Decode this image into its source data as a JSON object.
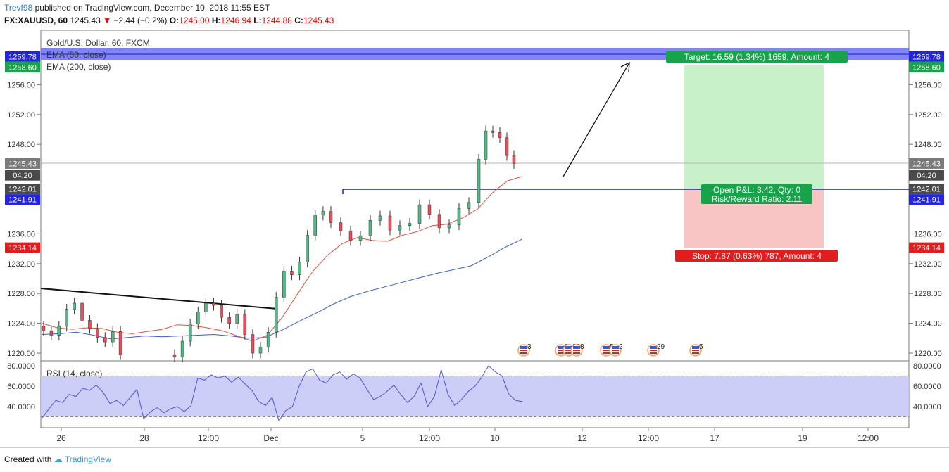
{
  "header": {
    "user": "Trevf98",
    "published": "published on TradingView.com, December 10, 2018 11:55 EST",
    "symbol": "FX:XAUUSD, 60",
    "last": "1245.43",
    "change_arrow": "▼",
    "change": "−2.44 (−0.2%)",
    "o_label": "O:",
    "o": "1245.00",
    "h_label": "H:",
    "h": "1246.94",
    "l_label": "L:",
    "l": "1244.88",
    "c_label": "C:",
    "c": "1245.43"
  },
  "legend": {
    "title": "Gold/U.S. Dollar, 60, FXCM",
    "ema50": "EMA (50, close)",
    "ema200": "EMA (200, close)",
    "rsi": "RSI (14, close)"
  },
  "colors": {
    "up": "#53b987",
    "down": "#eb4d5c",
    "ema50": "#e74c3c",
    "ema200": "#3a5bd9",
    "rsi": "#4a55d6",
    "rsi_band": "#c7c9f7",
    "target": "#16a34a",
    "stop": "#e11d1d",
    "level": "#1c1ccc",
    "profit_zone": "#c9f1c9",
    "loss_zone": "#f9c4c4"
  },
  "price_badges": {
    "left": [
      {
        "text": "1259.78",
        "kind": "blue",
        "price": 1259.78
      },
      {
        "text": "1258.60",
        "kind": "green",
        "price": 1258.6
      },
      {
        "text": "1245.43",
        "kind": "gray",
        "price": 1245.43
      },
      {
        "text": "04:20",
        "kind": "dark",
        "price": 1243.85
      },
      {
        "text": "1242.01",
        "kind": "dark",
        "price": 1242.01
      },
      {
        "text": "1241.91",
        "kind": "blue",
        "price": 1241.91
      },
      {
        "text": "1234.14",
        "kind": "red",
        "price": 1234.14
      }
    ],
    "right": [
      {
        "text": "1259.78",
        "kind": "blue",
        "price": 1259.78
      },
      {
        "text": "1258.60",
        "kind": "green",
        "price": 1258.6
      },
      {
        "text": "1245.43",
        "kind": "gray",
        "price": 1245.43
      },
      {
        "text": "04:20",
        "kind": "dark",
        "price": 1243.85
      },
      {
        "text": "1242.01",
        "kind": "dark",
        "price": 1242.01
      },
      {
        "text": "1241.91",
        "kind": "blue",
        "price": 1241.91
      },
      {
        "text": "1234.14",
        "kind": "red",
        "price": 1234.14
      }
    ]
  },
  "position": {
    "target_label": "Target: 16.59 (1.34%) 1659, Amount: 4",
    "pnl_label": "Open P&L: 3.42, Qty: 0",
    "rr_label": "Risk/Reward Ratio: 2.11",
    "stop_label": "Stop: 7.87 (0.63%) 787, Amount: 4",
    "entry": 1242.01,
    "target": 1258.6,
    "stop": 1234.14
  },
  "events": [
    {
      "label": "3",
      "x": 744
    },
    {
      "label": "8",
      "x": 797
    },
    {
      "label": "22",
      "x": 808
    },
    {
      "label": "8",
      "x": 819
    },
    {
      "label": "5",
      "x": 861
    },
    {
      "label": "2",
      "x": 874
    },
    {
      "label": "29",
      "x": 928
    },
    {
      "label": "5",
      "x": 988
    }
  ],
  "chart_data": [
    {
      "type": "candlestick",
      "title": "Gold/U.S. Dollar, 60, FXCM",
      "ylim": [
        1219,
        1261
      ],
      "yticks": [
        "1256.00",
        "1252.00",
        "1248.00",
        "1236.00",
        "1232.00",
        "1228.00",
        "1224.00",
        "1220.00"
      ],
      "xticks": [
        "26",
        "28",
        "12:00",
        "Dec",
        "5",
        "12:00",
        "10",
        "12",
        "12:00",
        "17",
        "19",
        "12:00"
      ],
      "series": [
        {
          "name": "Price (close, approx.)",
          "values": [
            1223.0,
            1222.4,
            1223.6,
            1225.9,
            1226.7,
            1224.4,
            1223.3,
            1222.1,
            1221.5,
            1222.9,
            1219.8,
            1219.5,
            1221.6,
            1223.9,
            1225.5,
            1226.7,
            1226.4,
            1224.8,
            1224.0,
            1225.2,
            1222.5,
            1220.0,
            1220.8,
            1222.8,
            1227.5,
            1231.0,
            1230.5,
            1232.2,
            1235.8,
            1238.5,
            1239.0,
            1237.5,
            1236.4,
            1235.1,
            1235.7,
            1237.8,
            1238.4,
            1236.5,
            1237.1,
            1237.4,
            1239.9,
            1238.6,
            1236.8,
            1237.2,
            1239.4,
            1240.2,
            1246.0,
            1249.8,
            1249.6,
            1248.9,
            1246.5,
            1245.43
          ]
        },
        {
          "name": "EMA (50, close)",
          "values": [
            1224.0,
            1223.4,
            1223.2,
            1223.4,
            1223.3,
            1222.8,
            1222.6,
            1222.9,
            1223.2,
            1223.8,
            1223.7,
            1223.4,
            1223.0,
            1222.3,
            1221.6,
            1222.4,
            1224.8,
            1227.9,
            1230.9,
            1233.1,
            1234.7,
            1235.5,
            1235.1,
            1235.0,
            1235.8,
            1236.3,
            1237.1,
            1237.3,
            1238.1,
            1239.3,
            1241.5,
            1243.1,
            1243.7
          ]
        },
        {
          "name": "EMA (200, close)",
          "values": [
            1222.5,
            1222.6,
            1222.8,
            1222.4,
            1221.9,
            1222.1,
            1222.3,
            1222.2,
            1222.3,
            1222.4,
            1222.5,
            1222.3,
            1222.0,
            1222.1,
            1223.1,
            1224.3,
            1225.4,
            1226.6,
            1227.6,
            1228.3,
            1228.9,
            1229.5,
            1230.1,
            1230.7,
            1231.2,
            1231.7,
            1232.9,
            1234.2,
            1235.3
          ]
        }
      ]
    },
    {
      "type": "line",
      "title": "RSI (14, close)",
      "ylim": [
        25,
        82
      ],
      "yticks": [
        "80.0000",
        "60.0000",
        "40.0000"
      ],
      "bands": [
        70,
        30
      ],
      "series": [
        {
          "name": "RSI (14, close)",
          "values": [
            29.0,
            38.0,
            46.0,
            44.0,
            52.0,
            50.0,
            58.0,
            56.0,
            61.0,
            54.0,
            43.0,
            46.0,
            41.0,
            49.0,
            57.0,
            28.0,
            35.0,
            39.0,
            34.0,
            38.0,
            40.0,
            35.0,
            41.0,
            68.0,
            66.0,
            71.0,
            68.0,
            70.0,
            64.0,
            69.0,
            62.0,
            56.0,
            45.0,
            41.0,
            49.0,
            26.0,
            36.0,
            40.0,
            60.0,
            74.0,
            77.0,
            66.0,
            63.0,
            71.0,
            74.0,
            67.0,
            72.0,
            68.0,
            57.0,
            47.0,
            50.0,
            55.0,
            61.0,
            52.0,
            44.0,
            50.0,
            63.0,
            40.0,
            50.0,
            76.0,
            52.0,
            41.0,
            47.0,
            55.0,
            60.0,
            69.0,
            80.0,
            74.0,
            70.0,
            52.0,
            46.0,
            45.0
          ]
        }
      ]
    }
  ]
}
